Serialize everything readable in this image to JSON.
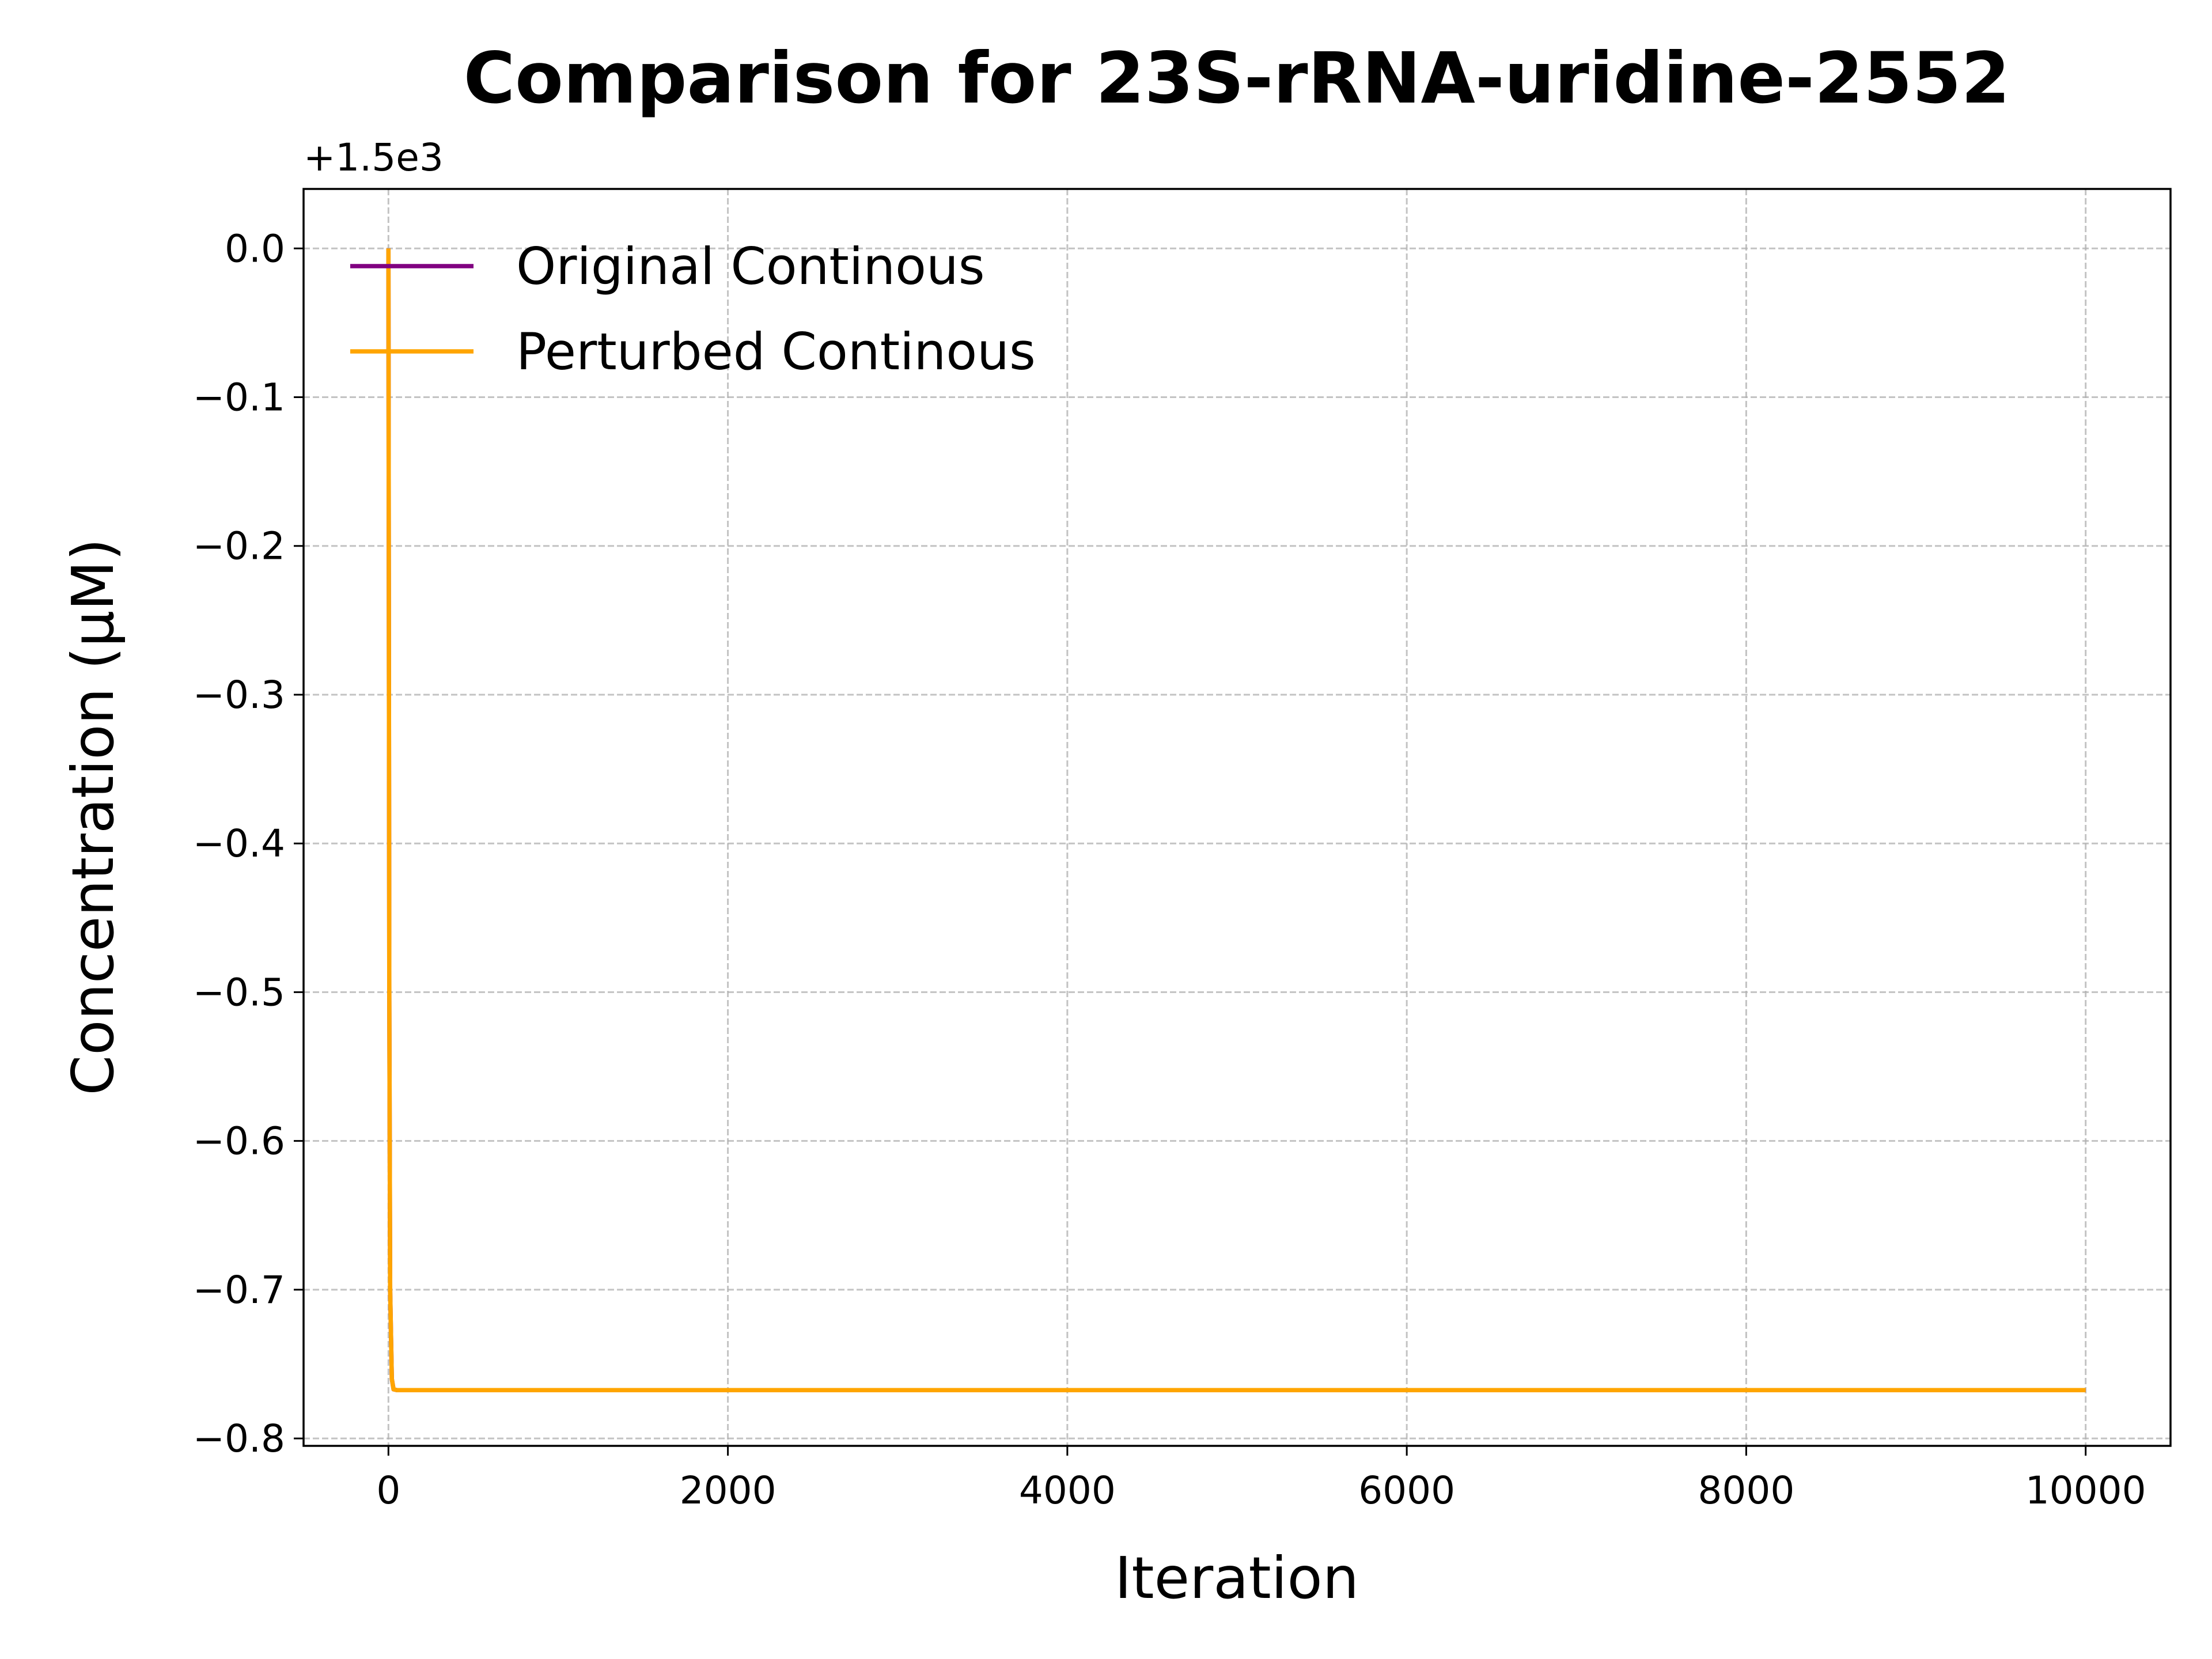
{
  "chart_data": {
    "type": "line",
    "title": "Comparison for 23S-rRNA-uridine-2552",
    "xlabel": "Iteration",
    "ylabel": "Concentration (μM)",
    "y_offset_label": "+1.5e3",
    "xlim": [
      -500,
      10500
    ],
    "ylim": [
      -0.805,
      0.04
    ],
    "x_ticks": [
      0,
      2000,
      4000,
      6000,
      8000,
      10000
    ],
    "x_tick_labels": [
      "0",
      "2000",
      "4000",
      "6000",
      "8000",
      "10000"
    ],
    "y_ticks": [
      0.0,
      -0.1,
      -0.2,
      -0.3,
      -0.4,
      -0.5,
      -0.6,
      -0.7,
      -0.8
    ],
    "y_tick_labels": [
      "0.0",
      "−0.1",
      "−0.2",
      "−0.3",
      "−0.4",
      "−0.5",
      "−0.6",
      "−0.7",
      "−0.8"
    ],
    "grid": true,
    "legend_position": "top-left",
    "series": [
      {
        "name": "Original Continous",
        "color": "#800080",
        "x": [
          0,
          5,
          10,
          20,
          30,
          50,
          100,
          1000,
          5000,
          10000
        ],
        "y": [
          0.0,
          -0.5,
          -0.7,
          -0.76,
          -0.767,
          -0.7675,
          -0.7675,
          -0.7675,
          -0.7675,
          -0.7675
        ]
      },
      {
        "name": "Perturbed Continous",
        "color": "#FFA500",
        "x": [
          0,
          5,
          10,
          20,
          30,
          50,
          100,
          1000,
          5000,
          10000
        ],
        "y": [
          0.0,
          -0.5,
          -0.7,
          -0.76,
          -0.767,
          -0.7675,
          -0.7675,
          -0.7675,
          -0.7675,
          -0.7675
        ]
      }
    ]
  }
}
